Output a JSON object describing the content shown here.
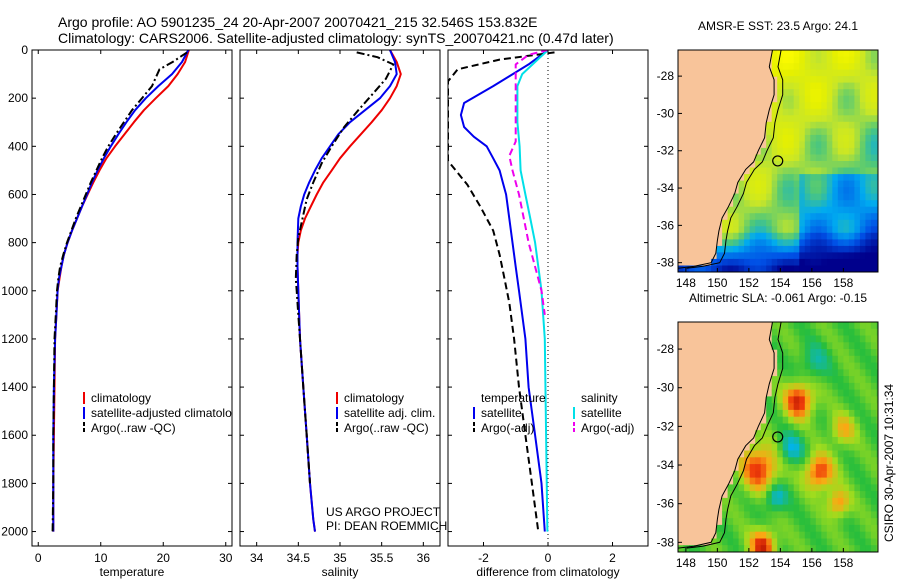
{
  "header": {
    "line1": "Argo profile: AO 5901235_24 20-Apr-2007 20070421_215 32.546S 153.832E",
    "line2": "Climatology: CARS2006. Satellite-adjusted climatology: synTS_20070421.nc (0.47d later)"
  },
  "credit": {
    "project": "US ARGO PROJECT",
    "pi": "PI: DEAN ROEMMICH",
    "csiro": "CSIRO 30-Apr-2007 10:31:34"
  },
  "colors": {
    "climatology": "#ee0000",
    "satellite": "#0000ee",
    "argo": "#000000",
    "sal_satellite": "#00e0e8",
    "sal_argo": "#ee00ee",
    "land": "#f8c49a"
  },
  "chart_data": [
    {
      "type": "line",
      "panel": "temperature",
      "xlabel": "temperature",
      "ylabel": "",
      "xlim": [
        -1,
        31
      ],
      "ylim": [
        2060,
        0
      ],
      "y_reversed": true,
      "xticks": [
        0,
        10,
        20,
        30
      ],
      "yticks": [
        0,
        200,
        400,
        600,
        800,
        1000,
        1200,
        1400,
        1600,
        1800,
        2000
      ],
      "legend": [
        "climatology",
        "satellite-adjusted climatolo",
        "Argo(..raw -QC)"
      ],
      "series": [
        {
          "name": "climatology",
          "style": "solid",
          "color_key": "climatology",
          "x": [
            24.1,
            23.5,
            22.3,
            20.8,
            18.8,
            16.9,
            15.3,
            13.8,
            12.3,
            10.9,
            9.8,
            8.8,
            7.9,
            7.0,
            6.2,
            5.4,
            4.7,
            4.1,
            3.7,
            3.4,
            3.1,
            2.9,
            2.7,
            2.6,
            2.5,
            2.4,
            2.4
          ],
          "y": [
            0,
            50,
            100,
            150,
            200,
            250,
            300,
            350,
            400,
            450,
            500,
            550,
            600,
            650,
            700,
            750,
            800,
            850,
            900,
            950,
            1000,
            1100,
            1200,
            1400,
            1600,
            1800,
            2000
          ]
        },
        {
          "name": "satellite-adjusted climatolo",
          "style": "solid",
          "color_key": "satellite",
          "x": [
            24.0,
            23.0,
            21.4,
            19.2,
            17.2,
            15.5,
            14.1,
            12.8,
            11.6,
            10.5,
            9.5,
            8.6,
            7.8,
            7.0,
            6.2,
            5.4,
            4.7,
            4.1,
            3.7,
            3.3,
            3.1,
            2.9,
            2.7,
            2.5,
            2.4,
            2.4,
            2.4
          ],
          "y": [
            0,
            50,
            100,
            150,
            200,
            250,
            300,
            350,
            400,
            450,
            500,
            550,
            600,
            650,
            700,
            750,
            800,
            850,
            900,
            950,
            1000,
            1100,
            1200,
            1400,
            1600,
            1800,
            2000
          ]
        },
        {
          "name": "Argo(..raw -QC)",
          "style": "dashdot",
          "color_key": "argo",
          "x": [
            23.8,
            21.5,
            19.4,
            18.2,
            16.6,
            15.0,
            13.7,
            12.4,
            11.2,
            10.2,
            9.3,
            8.4,
            7.6,
            6.8,
            6.0,
            5.3,
            4.6,
            4.0,
            3.5,
            3.2,
            3.0,
            2.8,
            2.6,
            2.5,
            2.4,
            2.4,
            2.3
          ],
          "y": [
            10,
            50,
            80,
            150,
            200,
            250,
            300,
            350,
            400,
            450,
            500,
            550,
            600,
            650,
            700,
            750,
            800,
            850,
            900,
            950,
            1000,
            1100,
            1200,
            1400,
            1600,
            1800,
            2000
          ]
        }
      ]
    },
    {
      "type": "line",
      "panel": "salinity",
      "xlabel": "salinity",
      "ylabel": "",
      "xlim": [
        33.8,
        36.2
      ],
      "ylim": [
        2060,
        0
      ],
      "y_reversed": true,
      "xticks": [
        34,
        34.5,
        35,
        35.5,
        36
      ],
      "legend": [
        "climatology",
        "satellite adj. clim.",
        "Argo(..raw -QC)"
      ],
      "series": [
        {
          "name": "climatology",
          "style": "solid",
          "color_key": "climatology",
          "x": [
            35.6,
            35.68,
            35.73,
            35.68,
            35.6,
            35.5,
            35.38,
            35.25,
            35.12,
            35.0,
            34.9,
            34.8,
            34.72,
            34.65,
            34.58,
            34.53,
            34.5,
            34.49,
            34.49,
            34.5,
            34.52,
            34.56,
            34.6,
            34.64,
            34.68,
            34.7
          ],
          "y": [
            0,
            50,
            100,
            150,
            200,
            250,
            300,
            350,
            400,
            450,
            500,
            550,
            600,
            650,
            700,
            750,
            800,
            850,
            900,
            1000,
            1200,
            1400,
            1600,
            1800,
            1950,
            2000
          ]
        },
        {
          "name": "satellite adj. clim.",
          "style": "solid",
          "color_key": "satellite",
          "x": [
            35.6,
            35.66,
            35.68,
            35.6,
            35.48,
            35.3,
            35.12,
            34.98,
            34.88,
            34.78,
            34.7,
            34.63,
            34.57,
            34.53,
            34.5,
            34.49,
            34.49,
            34.5,
            34.52,
            34.56,
            34.6,
            34.64,
            34.68,
            34.7
          ],
          "y": [
            0,
            50,
            100,
            150,
            200,
            250,
            300,
            350,
            400,
            450,
            500,
            550,
            600,
            650,
            700,
            800,
            900,
            1000,
            1200,
            1400,
            1600,
            1800,
            1950,
            2000
          ]
        },
        {
          "name": "Argo(..raw -QC)",
          "style": "dashdot",
          "color_key": "argo",
          "x": [
            35.2,
            35.45,
            35.64,
            35.55,
            35.4,
            35.22,
            35.05,
            34.9,
            34.78,
            34.68,
            34.6,
            34.55,
            34.5,
            34.48,
            34.47,
            34.48,
            34.5,
            34.52,
            34.56,
            34.6,
            34.64
          ],
          "y": [
            10,
            30,
            60,
            120,
            180,
            250,
            320,
            400,
            470,
            550,
            620,
            700,
            780,
            850,
            950,
            1000,
            1100,
            1200,
            1400,
            1600,
            1800
          ]
        }
      ]
    },
    {
      "type": "line",
      "panel": "difference",
      "xlabel": "difference from climatology",
      "ylabel": "",
      "xlim": [
        -3.1,
        3.1
      ],
      "ylim": [
        2060,
        0
      ],
      "y_reversed": true,
      "xticks": [
        -2,
        0,
        2
      ],
      "zero_line": true,
      "legend": {
        "temperature_header": "temperature",
        "salinity_header": "salinity",
        "temperature": [
          "satellite",
          "Argo(-adj)"
        ],
        "salinity": [
          "satellite",
          "Argo(-adj)"
        ]
      },
      "series": [
        {
          "name": "temperature satellite",
          "style": "solid",
          "color_key": "satellite",
          "x": [
            0,
            -0.6,
            -1.7,
            -2.6,
            -2.7,
            -2.6,
            -2.3,
            -1.9,
            -1.7,
            -1.5,
            -1.4,
            -1.3,
            -1.2,
            -1.1,
            -1.0,
            -0.9,
            -0.7,
            -0.6,
            -0.4,
            -0.2,
            -0.1
          ],
          "y": [
            0,
            60,
            150,
            220,
            270,
            320,
            360,
            400,
            450,
            500,
            550,
            600,
            700,
            800,
            900,
            1000,
            1200,
            1400,
            1600,
            1800,
            2000
          ]
        },
        {
          "name": "temperature Argo(-adj)",
          "style": "dashed",
          "color_key": "argo",
          "x": [
            0.2,
            -1.5,
            -2.8,
            -3.1,
            -3.1,
            -2.5,
            -2.1,
            -1.7,
            -1.5,
            -1.35,
            -1.2,
            -1.05,
            -0.9,
            -0.7,
            -0.5,
            -0.3
          ],
          "y": [
            10,
            40,
            80,
            130,
            460,
            560,
            650,
            750,
            850,
            950,
            1050,
            1200,
            1400,
            1600,
            1800,
            2000
          ]
        },
        {
          "name": "salinity satellite",
          "style": "solid",
          "color_key": "sal_satellite",
          "x": [
            0,
            -0.4,
            -0.8,
            -0.95,
            -0.95,
            -0.88,
            -0.85,
            -0.7,
            -0.55,
            -0.4,
            -0.3,
            -0.2,
            -0.1,
            -0.02
          ],
          "y": [
            0,
            50,
            100,
            150,
            300,
            400,
            500,
            600,
            700,
            800,
            900,
            1000,
            1200,
            2000
          ]
        },
        {
          "name": "salinity Argo(-adj)",
          "style": "dashed",
          "color_key": "sal_argo",
          "x": [
            0,
            -0.6,
            -1.0,
            -1.0,
            -1.0,
            -1.2,
            -1.1,
            -1.0,
            -0.9,
            -0.75,
            -0.6,
            -0.4,
            -0.2,
            -0.1
          ],
          "y": [
            0,
            20,
            60,
            120,
            380,
            440,
            500,
            550,
            600,
            700,
            800,
            900,
            1000,
            1100
          ]
        }
      ]
    },
    {
      "type": "heatmap",
      "panel": "sst_map",
      "title": "AMSR-E SST: 23.5 Argo: 24.1",
      "xlim": [
        147.5,
        160.2
      ],
      "ylim": [
        -38.5,
        -26.6
      ],
      "xticks": [
        148,
        150,
        152,
        154,
        156,
        158
      ],
      "yticks": [
        -28,
        -30,
        -32,
        -34,
        -36,
        -38
      ],
      "profile_location": {
        "lon": 153.832,
        "lat": -32.546
      }
    },
    {
      "type": "heatmap",
      "panel": "sla_map",
      "title": "Altimetric SLA: -0.061 Argo: -0.15",
      "xlim": [
        147.5,
        160.2
      ],
      "ylim": [
        -38.5,
        -26.6
      ],
      "xticks": [
        148,
        150,
        152,
        154,
        156,
        158
      ],
      "yticks": [
        -28,
        -30,
        -32,
        -34,
        -36,
        -38
      ],
      "profile_location": {
        "lon": 153.832,
        "lat": -32.546
      }
    }
  ]
}
